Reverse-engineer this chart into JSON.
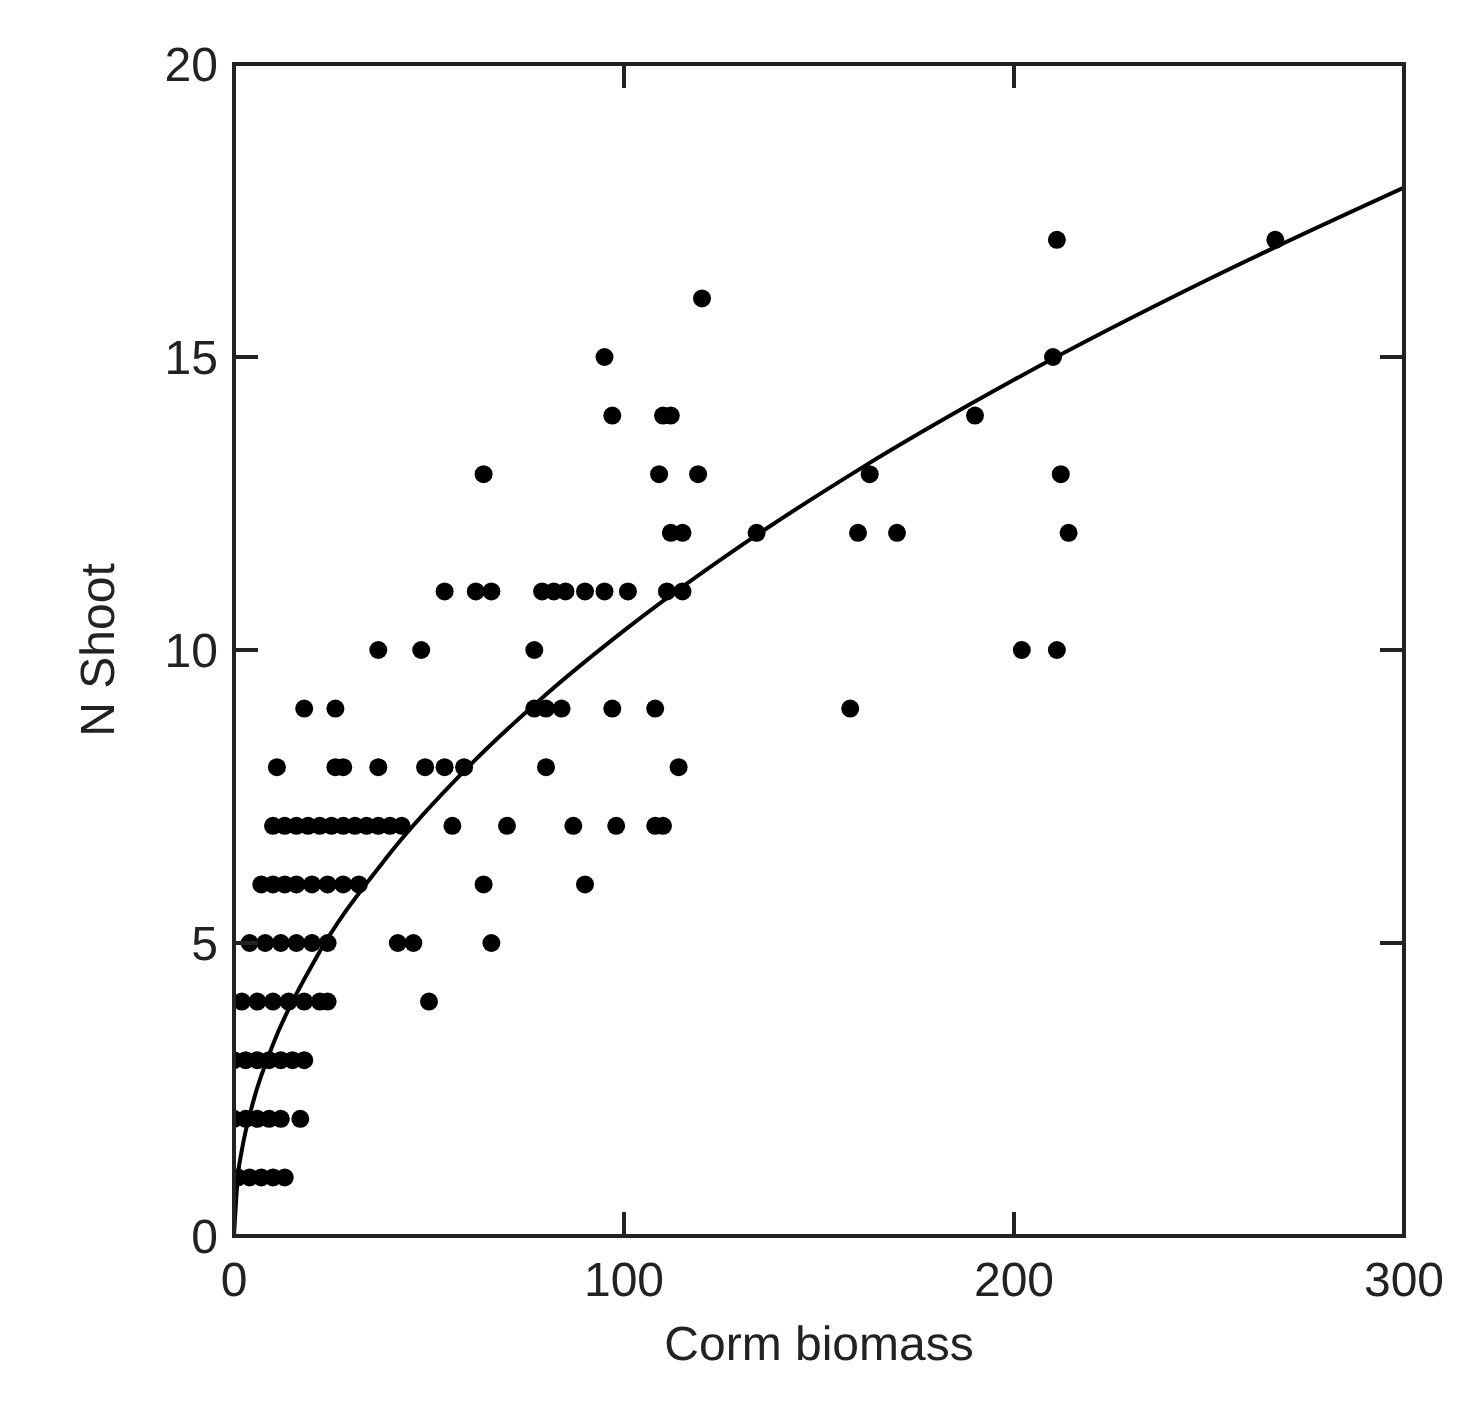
{
  "chart_data": {
    "type": "scatter",
    "xlabel": "Corm biomass",
    "ylabel": "N Shoot",
    "xlim": [
      0,
      300
    ],
    "xticks": [
      0,
      100,
      200,
      300
    ],
    "ylim": [
      0,
      20
    ],
    "yticks": [
      0,
      5,
      10,
      15,
      20
    ],
    "grid": false,
    "series": [
      {
        "marker": "circle",
        "color": "#000000",
        "x": [
          1,
          4,
          7,
          10,
          13,
          0,
          3,
          6,
          9,
          12,
          17,
          0,
          3,
          6,
          9,
          12,
          15,
          18,
          2,
          6,
          10,
          14,
          18,
          22,
          24,
          50,
          4,
          8,
          12,
          16,
          20,
          24,
          42,
          46,
          66,
          7,
          10,
          13,
          16,
          20,
          24,
          28,
          32,
          64,
          90,
          10,
          13,
          16,
          19,
          22,
          25,
          28,
          31,
          34,
          37,
          40,
          43,
          56,
          70,
          87,
          98,
          108,
          110,
          11,
          26,
          28,
          37,
          49,
          54,
          59,
          80,
          114,
          18,
          26,
          77,
          80,
          84,
          97,
          108,
          158,
          37,
          48,
          77,
          202,
          211,
          54,
          62,
          66,
          79,
          82,
          85,
          90,
          95,
          101,
          111,
          115,
          112,
          115,
          134,
          160,
          170,
          214,
          64,
          109,
          119,
          163,
          212,
          97,
          110,
          112,
          190,
          95,
          210,
          120,
          211,
          267
        ],
        "values": [
          1,
          1,
          1,
          1,
          1,
          2,
          2,
          2,
          2,
          2,
          2,
          3,
          3,
          3,
          3,
          3,
          3,
          3,
          4,
          4,
          4,
          4,
          4,
          4,
          4,
          4,
          5,
          5,
          5,
          5,
          5,
          5,
          5,
          5,
          5,
          6,
          6,
          6,
          6,
          6,
          6,
          6,
          6,
          6,
          6,
          7,
          7,
          7,
          7,
          7,
          7,
          7,
          7,
          7,
          7,
          7,
          7,
          7,
          7,
          7,
          7,
          7,
          7,
          8,
          8,
          8,
          8,
          8,
          8,
          8,
          8,
          8,
          9,
          9,
          9,
          9,
          9,
          9,
          9,
          9,
          10,
          10,
          10,
          10,
          10,
          11,
          11,
          11,
          11,
          11,
          11,
          11,
          11,
          11,
          11,
          11,
          12,
          12,
          12,
          12,
          12,
          12,
          13,
          13,
          13,
          13,
          13,
          14,
          14,
          14,
          14,
          15,
          15,
          16,
          17,
          17
        ]
      },
      {
        "type": "line",
        "color": "#000000",
        "line_style": "solid",
        "x": [
          0,
          1,
          2,
          5,
          10,
          20,
          40,
          60,
          80,
          100,
          130,
          160,
          200,
          250,
          300
        ],
        "values": [
          0,
          1.03,
          1.46,
          2.31,
          3.27,
          4.62,
          6.53,
          8.0,
          9.24,
          10.33,
          11.78,
          13.07,
          14.61,
          16.33,
          17.89
        ]
      }
    ]
  }
}
